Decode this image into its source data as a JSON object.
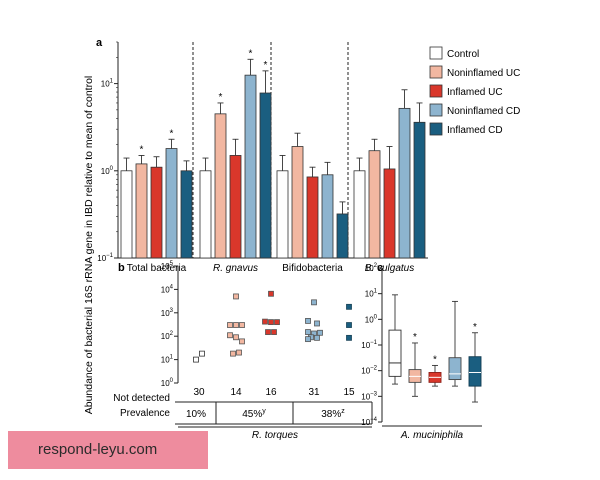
{
  "ylabel": "Abundance of bacterial 16S rRNA gene in IBD relative to mean of control",
  "watermark": "respond-leyu.com",
  "legend": {
    "items": [
      {
        "label": "Control",
        "color": "#ffffff"
      },
      {
        "label": "Noninflamed UC",
        "color": "#f2b7a1"
      },
      {
        "label": "Inflamed UC",
        "color": "#d9372b"
      },
      {
        "label": "Noninflamed CD",
        "color": "#8db4cf"
      },
      {
        "label": "Inflamed CD",
        "color": "#1a5e80"
      }
    ]
  },
  "chart_data": [
    {
      "panel": "a",
      "type": "bar",
      "scale": "log",
      "ylim": [
        0.1,
        30
      ],
      "y_ticks": [
        {
          "value": 0.1,
          "base": "10",
          "exp": "−1"
        },
        {
          "value": 1,
          "base": "10",
          "exp": "0"
        },
        {
          "value": 10,
          "base": "10",
          "exp": "1"
        }
      ],
      "categories": [
        "Total bacteria",
        "R. gnavus",
        "Bifidobacteria",
        "B. vulgatus"
      ],
      "series": [
        {
          "name": "Control",
          "color": "#ffffff",
          "values": [
            1.0,
            1.0,
            1.0,
            1.0
          ],
          "errors": [
            1.4,
            1.4,
            1.5,
            1.4
          ]
        },
        {
          "name": "Noninflamed UC",
          "color": "#f2b7a1",
          "values": [
            1.2,
            4.5,
            1.9,
            1.7
          ],
          "errors": [
            1.5,
            6.0,
            2.7,
            2.3
          ]
        },
        {
          "name": "Inflamed UC",
          "color": "#d9372b",
          "values": [
            1.1,
            1.5,
            0.85,
            1.05
          ],
          "errors": [
            1.45,
            2.3,
            1.1,
            1.9
          ]
        },
        {
          "name": "Noninflamed CD",
          "color": "#8db4cf",
          "values": [
            1.8,
            12.5,
            0.9,
            5.2
          ],
          "errors": [
            2.3,
            19.0,
            1.25,
            8.5
          ]
        },
        {
          "name": "Inflamed CD",
          "color": "#1a5e80",
          "values": [
            1.0,
            7.8,
            0.32,
            3.6
          ],
          "errors": [
            1.3,
            14.0,
            0.44,
            6.0
          ]
        }
      ],
      "significance": [
        {
          "category": "Total bacteria",
          "series": "Noninflamed UC",
          "label": "*"
        },
        {
          "category": "Total bacteria",
          "series": "Noninflamed CD",
          "label": "*"
        },
        {
          "category": "R. gnavus",
          "series": "Noninflamed UC",
          "label": "*"
        },
        {
          "category": "R. gnavus",
          "series": "Noninflamed CD",
          "label": "*"
        },
        {
          "category": "R. gnavus",
          "series": "Inflamed CD",
          "label": "*"
        }
      ]
    },
    {
      "panel": "b",
      "type": "scatter",
      "scale": "log",
      "ylim": [
        1,
        100000
      ],
      "y_ticks": [
        {
          "value": 1,
          "base": "10",
          "exp": "0"
        },
        {
          "value": 10,
          "base": "10",
          "exp": "1"
        },
        {
          "value": 100,
          "base": "10",
          "exp": "2"
        },
        {
          "value": 1000,
          "base": "10",
          "exp": "3"
        },
        {
          "value": 10000,
          "base": "10",
          "exp": "4"
        },
        {
          "value": 100000,
          "base": "10",
          "exp": "5"
        }
      ],
      "xlabel": "R. torques",
      "groups": [
        {
          "name": "Control",
          "color": "#ffffff",
          "not_detected": "30",
          "points": [
            {
              "x": -0.5,
              "y": 10
            },
            {
              "x": 0.5,
              "y": 18
            }
          ]
        },
        {
          "name": "Noninflamed UC",
          "color": "#f2b7a1",
          "not_detected": "14",
          "points": [
            {
              "x": 0,
              "y": 5000
            },
            {
              "x": -1,
              "y": 300
            },
            {
              "x": 0,
              "y": 300
            },
            {
              "x": 1,
              "y": 60
            },
            {
              "x": -1,
              "y": 110
            },
            {
              "x": 0,
              "y": 90
            },
            {
              "x": -0.5,
              "y": 18
            },
            {
              "x": 0.5,
              "y": 20
            },
            {
              "x": 1,
              "y": 300
            }
          ]
        },
        {
          "name": "Inflamed UC",
          "color": "#d9372b",
          "not_detected": "16",
          "points": [
            {
              "x": 0,
              "y": 6500
            },
            {
              "x": -1,
              "y": 420
            },
            {
              "x": 0,
              "y": 400
            },
            {
              "x": 1,
              "y": 400
            },
            {
              "x": -0.5,
              "y": 150
            },
            {
              "x": 0.5,
              "y": 150
            }
          ]
        },
        {
          "name": "Noninflamed CD",
          "color": "#8db4cf",
          "not_detected": "31",
          "points": [
            {
              "x": 0,
              "y": 2800
            },
            {
              "x": -1,
              "y": 450
            },
            {
              "x": 0.5,
              "y": 350
            },
            {
              "x": -1,
              "y": 150
            },
            {
              "x": 0,
              "y": 130
            },
            {
              "x": 1,
              "y": 140
            },
            {
              "x": -0.5,
              "y": 90
            },
            {
              "x": 0.5,
              "y": 85
            },
            {
              "x": -1,
              "y": 75
            }
          ]
        },
        {
          "name": "Inflamed CD",
          "color": "#1a5e80",
          "not_detected": "15",
          "points": [
            {
              "x": 0,
              "y": 1800
            },
            {
              "x": 0,
              "y": 300
            },
            {
              "x": 0,
              "y": 85
            }
          ]
        }
      ],
      "not_detected_label": "Not detected",
      "prevalence_label": "Prevalence",
      "prevalence": [
        {
          "text": "10%",
          "sup": ""
        },
        {
          "text": "45%",
          "sup": "y"
        },
        {
          "text": "38%",
          "sup": "z"
        }
      ]
    },
    {
      "panel": "c",
      "type": "box",
      "scale": "log",
      "ylim": [
        0.0001,
        100
      ],
      "y_ticks": [
        {
          "value": 0.0001,
          "base": "10",
          "exp": "−4"
        },
        {
          "value": 0.001,
          "base": "10",
          "exp": "−3"
        },
        {
          "value": 0.01,
          "base": "10",
          "exp": "−2"
        },
        {
          "value": 0.1,
          "base": "10",
          "exp": "−1"
        },
        {
          "value": 1,
          "base": "10",
          "exp": "0"
        },
        {
          "value": 10,
          "base": "10",
          "exp": "1"
        },
        {
          "value": 100,
          "base": "10",
          "exp": "2"
        }
      ],
      "xlabel": "A. muciniphila",
      "boxes": [
        {
          "name": "Control",
          "color": "#ffffff",
          "min": 0.003,
          "q1": 0.006,
          "median": 0.02,
          "q3": 0.38,
          "max": 9,
          "sig": ""
        },
        {
          "name": "Noninflamed UC",
          "color": "#f2b7a1",
          "min": 0.001,
          "q1": 0.0035,
          "median": 0.006,
          "q3": 0.011,
          "max": 0.12,
          "sig": "*"
        },
        {
          "name": "Inflamed UC",
          "color": "#d9372b",
          "min": 0.0025,
          "q1": 0.0035,
          "median": 0.0055,
          "q3": 0.0085,
          "max": 0.016,
          "sig": "*"
        },
        {
          "name": "Noninflamed CD",
          "color": "#8db4cf",
          "min": 0.0025,
          "q1": 0.0045,
          "median": 0.0075,
          "q3": 0.032,
          "max": 5,
          "sig": ""
        },
        {
          "name": "Inflamed CD",
          "color": "#1a5e80",
          "min": 0.0006,
          "q1": 0.0025,
          "median": 0.0085,
          "q3": 0.035,
          "max": 0.3,
          "sig": "*"
        }
      ]
    }
  ]
}
